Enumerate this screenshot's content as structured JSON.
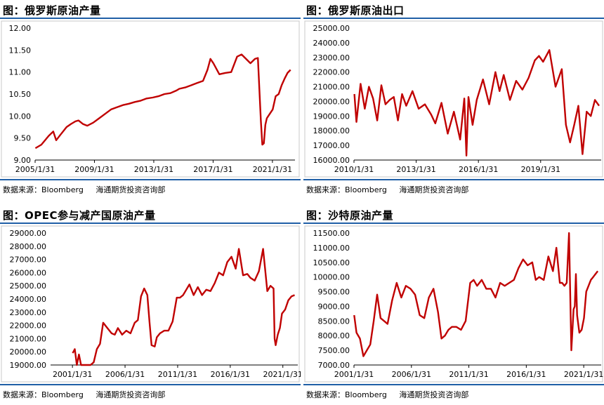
{
  "colors": {
    "line": "#c00000",
    "rule": "#1f5fa6",
    "frame": "#c8c8c8"
  },
  "chart_data": [
    {
      "type": "line",
      "title": "图：俄罗斯原油产量",
      "source": "数据来源：Bloomberg",
      "institution": "海通期货投资咨询部",
      "ylim": [
        9.0,
        12.0
      ],
      "yticks": [
        "12.00",
        "11.50",
        "11.00",
        "10.50",
        "10.00",
        "9.50",
        "9.00"
      ],
      "ytick_values": [
        12.0,
        11.5,
        11.0,
        10.5,
        10.0,
        9.5,
        9.0
      ],
      "xlim": [
        2005.08,
        2022.6
      ],
      "xticks": [
        "2005/1/31",
        "2009/1/31",
        "2013/1/31",
        "2017/1/31",
        "2021/1/31"
      ],
      "xtick_values": [
        2005.08,
        2009.08,
        2013.08,
        2017.08,
        2021.08
      ],
      "series": [
        {
          "x": [
            2005.1,
            2005.5,
            2006.0,
            2006.3,
            2006.5,
            2006.8,
            2007.2,
            2007.5,
            2007.8,
            2008.0,
            2008.3,
            2008.6,
            2009.0,
            2009.4,
            2009.8,
            2010.2,
            2010.6,
            2011.0,
            2011.4,
            2011.8,
            2012.2,
            2012.6,
            2013.0,
            2013.4,
            2013.8,
            2014.2,
            2014.6,
            2014.8,
            2015.2,
            2015.6,
            2016.0,
            2016.4,
            2016.7,
            2016.9,
            2017.1,
            2017.5,
            2017.9,
            2018.3,
            2018.7,
            2019.0,
            2019.3,
            2019.6,
            2019.9,
            2020.1,
            2020.3,
            2020.4,
            2020.5,
            2020.6,
            2020.7,
            2020.9,
            2021.1,
            2021.3,
            2021.5,
            2021.7,
            2021.9,
            2022.1,
            2022.3
          ],
          "y": [
            9.27,
            9.35,
            9.55,
            9.65,
            9.45,
            9.58,
            9.75,
            9.82,
            9.88,
            9.9,
            9.82,
            9.78,
            9.85,
            9.95,
            10.05,
            10.15,
            10.2,
            10.25,
            10.28,
            10.32,
            10.35,
            10.4,
            10.42,
            10.45,
            10.5,
            10.52,
            10.58,
            10.62,
            10.65,
            10.7,
            10.75,
            10.8,
            11.05,
            11.3,
            11.2,
            10.95,
            10.98,
            11.0,
            11.35,
            11.4,
            11.3,
            11.2,
            11.3,
            11.32,
            9.9,
            9.35,
            9.38,
            9.8,
            9.95,
            10.05,
            10.15,
            10.45,
            10.5,
            10.7,
            10.85,
            10.98,
            11.05
          ]
        }
      ]
    },
    {
      "type": "line",
      "title": "图：俄罗斯原油出口",
      "source": "数据来源：Bloomberg",
      "institution": "海通期货投资咨询部",
      "ylim": [
        16000,
        25000
      ],
      "yticks": [
        "25000.00",
        "24000.00",
        "23000.00",
        "22000.00",
        "21000.00",
        "20000.00",
        "19000.00",
        "18000.00",
        "17000.00",
        "16000.00"
      ],
      "ytick_values": [
        25000,
        24000,
        23000,
        22000,
        21000,
        20000,
        19000,
        18000,
        17000,
        16000
      ],
      "xlim": [
        2010.08,
        2022.0
      ],
      "xticks": [
        "2010/1/31",
        "2013/1/31",
        "2016/1/31",
        "2019/1/31"
      ],
      "xtick_values": [
        2010.08,
        2013.08,
        2016.08,
        2019.08
      ],
      "series": [
        {
          "x": [
            2010.1,
            2010.2,
            2010.4,
            2010.6,
            2010.8,
            2011.0,
            2011.2,
            2011.4,
            2011.6,
            2011.8,
            2012.0,
            2012.2,
            2012.4,
            2012.6,
            2012.9,
            2013.2,
            2013.5,
            2013.8,
            2014.0,
            2014.3,
            2014.6,
            2014.9,
            2015.2,
            2015.4,
            2015.5,
            2015.6,
            2015.8,
            2016.0,
            2016.3,
            2016.6,
            2016.9,
            2017.1,
            2017.3,
            2017.6,
            2017.9,
            2018.2,
            2018.5,
            2018.8,
            2019.0,
            2019.2,
            2019.5,
            2019.8,
            2020.1,
            2020.3,
            2020.5,
            2020.7,
            2020.9,
            2021.1,
            2021.3,
            2021.5,
            2021.7,
            2021.9
          ],
          "y": [
            20500,
            18600,
            21200,
            19500,
            21000,
            20200,
            18700,
            21100,
            19800,
            20100,
            20300,
            18700,
            20500,
            19700,
            20700,
            19500,
            19800,
            19100,
            18500,
            19900,
            17800,
            19300,
            17400,
            20200,
            16300,
            20300,
            18400,
            20100,
            21500,
            19800,
            22000,
            20700,
            21800,
            20100,
            21400,
            20800,
            21600,
            22800,
            23100,
            22700,
            23500,
            21000,
            22200,
            18400,
            17200,
            18400,
            19700,
            16400,
            19300,
            19000,
            20100,
            19700
          ]
        }
      ]
    },
    {
      "type": "line",
      "title": "图：OPEC参与减产国原油产量",
      "source": "数据来源：Bloomberg",
      "institution": "海通期货投资咨询部",
      "ylim": [
        19000,
        29000
      ],
      "yticks": [
        "29000.00",
        "28000.00",
        "27000.00",
        "26000.00",
        "25000.00",
        "24000.00",
        "23000.00",
        "22000.00",
        "21000.00",
        "20000.00",
        "19000.00"
      ],
      "ytick_values": [
        29000,
        28000,
        27000,
        26000,
        25000,
        24000,
        23000,
        22000,
        21000,
        20000,
        19000
      ],
      "xlim": [
        1999.0,
        2022.5
      ],
      "xticks": [
        "2001/1/31",
        "2006/1/31",
        "2011/1/31",
        "2016/1/31",
        "2021/1/31"
      ],
      "xtick_values": [
        2001.08,
        2006.08,
        2011.08,
        2016.08,
        2021.08
      ],
      "series": [
        {
          "x": [
            2001.1,
            2001.3,
            2001.5,
            2001.7,
            2001.9,
            2002.2,
            2002.5,
            2002.8,
            2003.1,
            2003.4,
            2003.7,
            2004.0,
            2004.4,
            2004.8,
            2005.1,
            2005.4,
            2005.8,
            2006.2,
            2006.6,
            2007.0,
            2007.3,
            2007.6,
            2007.9,
            2008.2,
            2008.4,
            2008.6,
            2008.9,
            2009.1,
            2009.4,
            2009.8,
            2010.2,
            2010.6,
            2011.0,
            2011.3,
            2011.6,
            2011.9,
            2012.2,
            2012.6,
            2013.0,
            2013.4,
            2013.8,
            2014.2,
            2014.6,
            2015.0,
            2015.4,
            2015.8,
            2016.2,
            2016.6,
            2016.9,
            2017.3,
            2017.7,
            2018.0,
            2018.4,
            2018.8,
            2019.2,
            2019.6,
            2019.9,
            2020.2,
            2020.3,
            2020.4,
            2020.6,
            2020.8,
            2021.0,
            2021.3,
            2021.6,
            2021.9,
            2022.2
          ],
          "y": [
            19900,
            20200,
            18600,
            19800,
            18900,
            18500,
            18100,
            18800,
            19200,
            20200,
            20600,
            22200,
            21800,
            21400,
            21300,
            21800,
            21300,
            21600,
            21400,
            22200,
            22400,
            24200,
            24800,
            24300,
            22300,
            20500,
            20400,
            21100,
            21400,
            21600,
            21600,
            22300,
            24100,
            24100,
            24300,
            24700,
            25100,
            24300,
            24900,
            24300,
            24700,
            24600,
            25200,
            26000,
            25800,
            26800,
            27200,
            26300,
            27800,
            25800,
            25900,
            25600,
            25400,
            26100,
            27800,
            24600,
            25000,
            24800,
            21000,
            20500,
            21300,
            21800,
            22900,
            23200,
            23900,
            24200,
            24300
          ]
        }
      ]
    },
    {
      "type": "line",
      "title": "图：沙特原油产量",
      "source": "数据来源：Bloomberg",
      "institution": "海通期货投资咨询部",
      "ylim": [
        7000,
        11500
      ],
      "yticks": [
        "11500.00",
        "11000.00",
        "10500.00",
        "10000.00",
        "9500.00",
        "9000.00",
        "8500.00",
        "8000.00",
        "7500.00",
        "7000.00"
      ],
      "ytick_values": [
        11500,
        11000,
        10500,
        10000,
        9500,
        9000,
        8500,
        8000,
        7500,
        7000
      ],
      "xlim": [
        2001.08,
        2022.6
      ],
      "xticks": [
        "2001/1/31",
        "2006/1/31",
        "2011/1/31",
        "2016/1/31",
        "2021/1/31"
      ],
      "xtick_values": [
        2001.08,
        2006.08,
        2011.08,
        2016.08,
        2021.08
      ],
      "series": [
        {
          "x": [
            2001.1,
            2001.3,
            2001.6,
            2001.9,
            2002.2,
            2002.5,
            2002.8,
            2003.1,
            2003.4,
            2003.7,
            2004.0,
            2004.4,
            2004.8,
            2005.2,
            2005.6,
            2006.0,
            2006.4,
            2006.8,
            2007.2,
            2007.6,
            2008.0,
            2008.4,
            2008.7,
            2009.0,
            2009.3,
            2009.6,
            2010.0,
            2010.4,
            2010.8,
            2011.2,
            2011.5,
            2011.8,
            2012.2,
            2012.6,
            2013.0,
            2013.4,
            2013.8,
            2014.2,
            2014.6,
            2015.0,
            2015.4,
            2015.8,
            2016.2,
            2016.6,
            2016.9,
            2017.2,
            2017.6,
            2018.0,
            2018.4,
            2018.7,
            2019.0,
            2019.2,
            2019.4,
            2019.6,
            2019.8,
            2020.0,
            2020.2,
            2020.3,
            2020.4,
            2020.5,
            2020.7,
            2020.9,
            2021.1,
            2021.3,
            2021.5,
            2021.7,
            2021.9,
            2022.1,
            2022.3
          ],
          "y": [
            8700,
            8100,
            7900,
            7300,
            7500,
            7700,
            8500,
            9400,
            8600,
            8500,
            8400,
            9200,
            9800,
            9300,
            9700,
            9600,
            9400,
            8700,
            8600,
            9300,
            9600,
            8800,
            7900,
            8000,
            8200,
            8300,
            8300,
            8200,
            8500,
            9800,
            9900,
            9700,
            9900,
            9600,
            9600,
            9300,
            9800,
            9700,
            9800,
            9900,
            10300,
            10600,
            10400,
            10500,
            9900,
            10000,
            9900,
            10700,
            10200,
            11000,
            9800,
            9800,
            9700,
            9800,
            11500,
            7500,
            8900,
            9000,
            10100,
            8700,
            8100,
            8200,
            8600,
            9500,
            9700,
            9900,
            10000,
            10100,
            10200
          ]
        }
      ]
    }
  ]
}
